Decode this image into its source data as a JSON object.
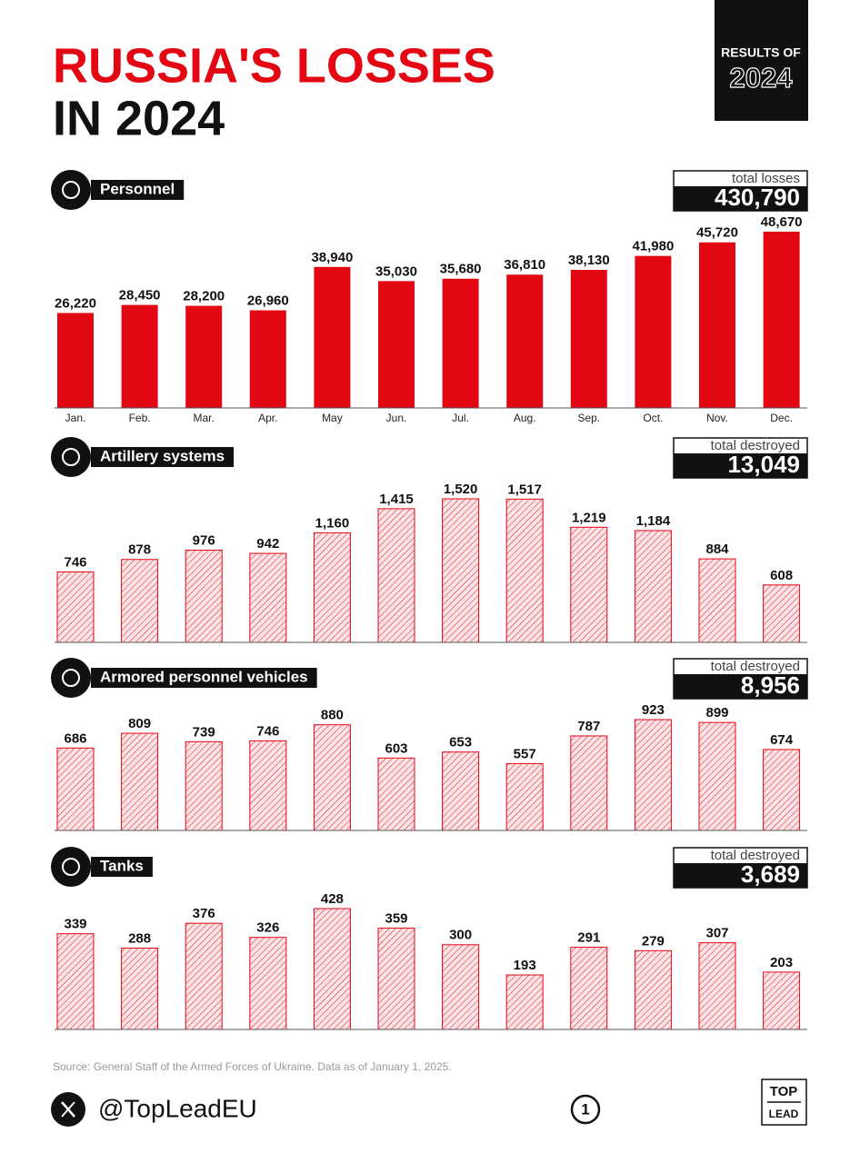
{
  "header": {
    "title_line1": "RUSSIA'S LOSSES",
    "title_line2": "IN 2024",
    "badge_top": "RESULTS OF",
    "badge_year": "2024"
  },
  "chart_data": [
    {
      "type": "bar",
      "title": "Personnel",
      "color": "#e30613",
      "total": {
        "caption": "total losses",
        "value": 430790,
        "label": "430,790"
      },
      "categories": [
        "Jan.",
        "Feb.",
        "Mar.",
        "Apr.",
        "May",
        "Jun.",
        "Jul.",
        "Aug.",
        "Sep.",
        "Oct.",
        "Nov.",
        "Dec."
      ],
      "values": [
        26220,
        28450,
        28200,
        26960,
        38940,
        35030,
        35680,
        36810,
        38130,
        41980,
        45720,
        48670
      ],
      "value_labels": [
        "26,220",
        "28,450",
        "28,200",
        "26,960",
        "38,940",
        "35,030",
        "35,680",
        "36,810",
        "38,130",
        "41,980",
        "45,720",
        "48,670"
      ]
    },
    {
      "type": "bar",
      "title": "Artillery systems",
      "color": "#e30613",
      "pattern": "hatch",
      "total": {
        "caption": "total destroyed",
        "value": 13049,
        "label": "13,049"
      },
      "values": [
        746,
        878,
        976,
        942,
        1160,
        1415,
        1520,
        1517,
        1219,
        1184,
        884,
        608
      ],
      "value_labels": [
        "746",
        "878",
        "976",
        "942",
        "1,160",
        "1,415",
        "1,520",
        "1,517",
        "1,219",
        "1,184",
        "884",
        "608"
      ]
    },
    {
      "type": "bar",
      "title": "Armored personnel vehicles",
      "color": "#e30613",
      "pattern": "hatch",
      "total": {
        "caption": "total destroyed",
        "value": 8956,
        "label": "8,956"
      },
      "values": [
        686,
        809,
        739,
        746,
        880,
        603,
        653,
        557,
        787,
        923,
        899,
        674
      ]
    },
    {
      "type": "bar",
      "title": "Tanks",
      "color": "#e30613",
      "pattern": "hatch",
      "total": {
        "caption": "total destroyed",
        "value": 3689,
        "label": "3,689"
      },
      "values": [
        339,
        288,
        376,
        326,
        428,
        359,
        300,
        193,
        291,
        279,
        307,
        203
      ]
    }
  ],
  "footer": {
    "source": "Source: General Staff of the Armed Forces of Ukraine. Data as of January 1, 2025.",
    "handle": "@TopLeadEU",
    "page": "1",
    "logo_top": "TOP",
    "logo_bottom": "LEAD"
  }
}
